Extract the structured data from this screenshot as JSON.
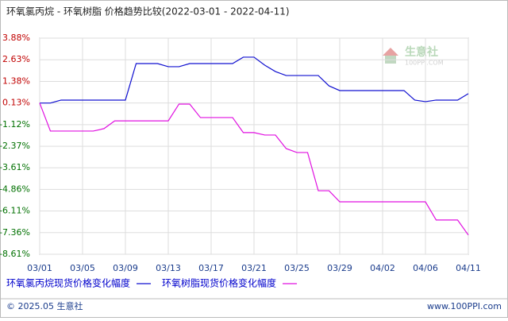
{
  "chart_data": {
    "type": "line",
    "title": "环氧氯丙烷 - 环氧树脂 价格趋势比较(2022-03-01 - 2022-04-11)",
    "categories": [
      "03/01",
      null,
      null,
      null,
      "03/05",
      null,
      null,
      null,
      "03/09",
      null,
      null,
      null,
      "03/13",
      null,
      null,
      null,
      "03/17",
      null,
      null,
      null,
      "03/21",
      null,
      null,
      null,
      "03/25",
      null,
      null,
      null,
      "03/29",
      null,
      null,
      null,
      "04/02",
      null,
      null,
      null,
      "04/06",
      null,
      null,
      null,
      "04/11"
    ],
    "series": [
      {
        "name": "环氧氯丙烷现货价格变化幅度",
        "color": "#1010d0",
        "values": [
          0.13,
          0.13,
          0.3,
          0.3,
          0.3,
          0.3,
          0.3,
          0.3,
          0.3,
          2.41,
          2.41,
          2.41,
          2.23,
          2.23,
          2.41,
          2.41,
          2.41,
          2.41,
          2.41,
          2.78,
          2.78,
          2.32,
          1.95,
          1.72,
          1.72,
          1.72,
          1.72,
          1.12,
          0.85,
          0.85,
          0.85,
          0.85,
          0.85,
          0.85,
          0.85,
          0.3,
          0.21,
          0.3,
          0.3,
          0.3,
          0.67
        ]
      },
      {
        "name": "环氧树脂现货价格变化幅度",
        "color": "#e010e0",
        "values": [
          0.13,
          -1.49,
          -1.49,
          -1.49,
          -1.49,
          -1.49,
          -1.35,
          -0.9,
          -0.9,
          -0.9,
          -0.9,
          -0.9,
          -0.9,
          0.07,
          0.07,
          -0.71,
          -0.71,
          -0.71,
          -0.71,
          -1.58,
          -1.58,
          -1.72,
          -1.72,
          -2.5,
          -2.73,
          -2.73,
          -4.94,
          -4.94,
          -5.58,
          -5.58,
          -5.58,
          -5.58,
          -5.58,
          -5.58,
          -5.58,
          -5.58,
          -5.58,
          -6.63,
          -6.63,
          -6.63,
          -7.5
        ]
      }
    ],
    "ylim": [
      -8.61,
      3.88
    ],
    "yticks": [
      {
        "value": 3.88,
        "label": "3.88%"
      },
      {
        "value": 2.63,
        "label": "2.63%"
      },
      {
        "value": 1.38,
        "label": "1.38%"
      },
      {
        "value": 0.13,
        "label": "0.13%"
      },
      {
        "value": -1.12,
        "label": "-1.12%"
      },
      {
        "value": -2.37,
        "label": "-2.37%"
      },
      {
        "value": -3.61,
        "label": "-3.61%"
      },
      {
        "value": -4.86,
        "label": "-4.86%"
      },
      {
        "value": -6.11,
        "label": "-6.11%"
      },
      {
        "value": -7.36,
        "label": "-7.36%"
      },
      {
        "value": -8.61,
        "label": "-8.61%"
      }
    ],
    "grid": true,
    "legend_position": "bottom",
    "watermark": [
      "生意社",
      "100PPI.COM"
    ],
    "footer": {
      "left": "© 2025.05 生意社",
      "right": "www.100PPI.com"
    }
  }
}
